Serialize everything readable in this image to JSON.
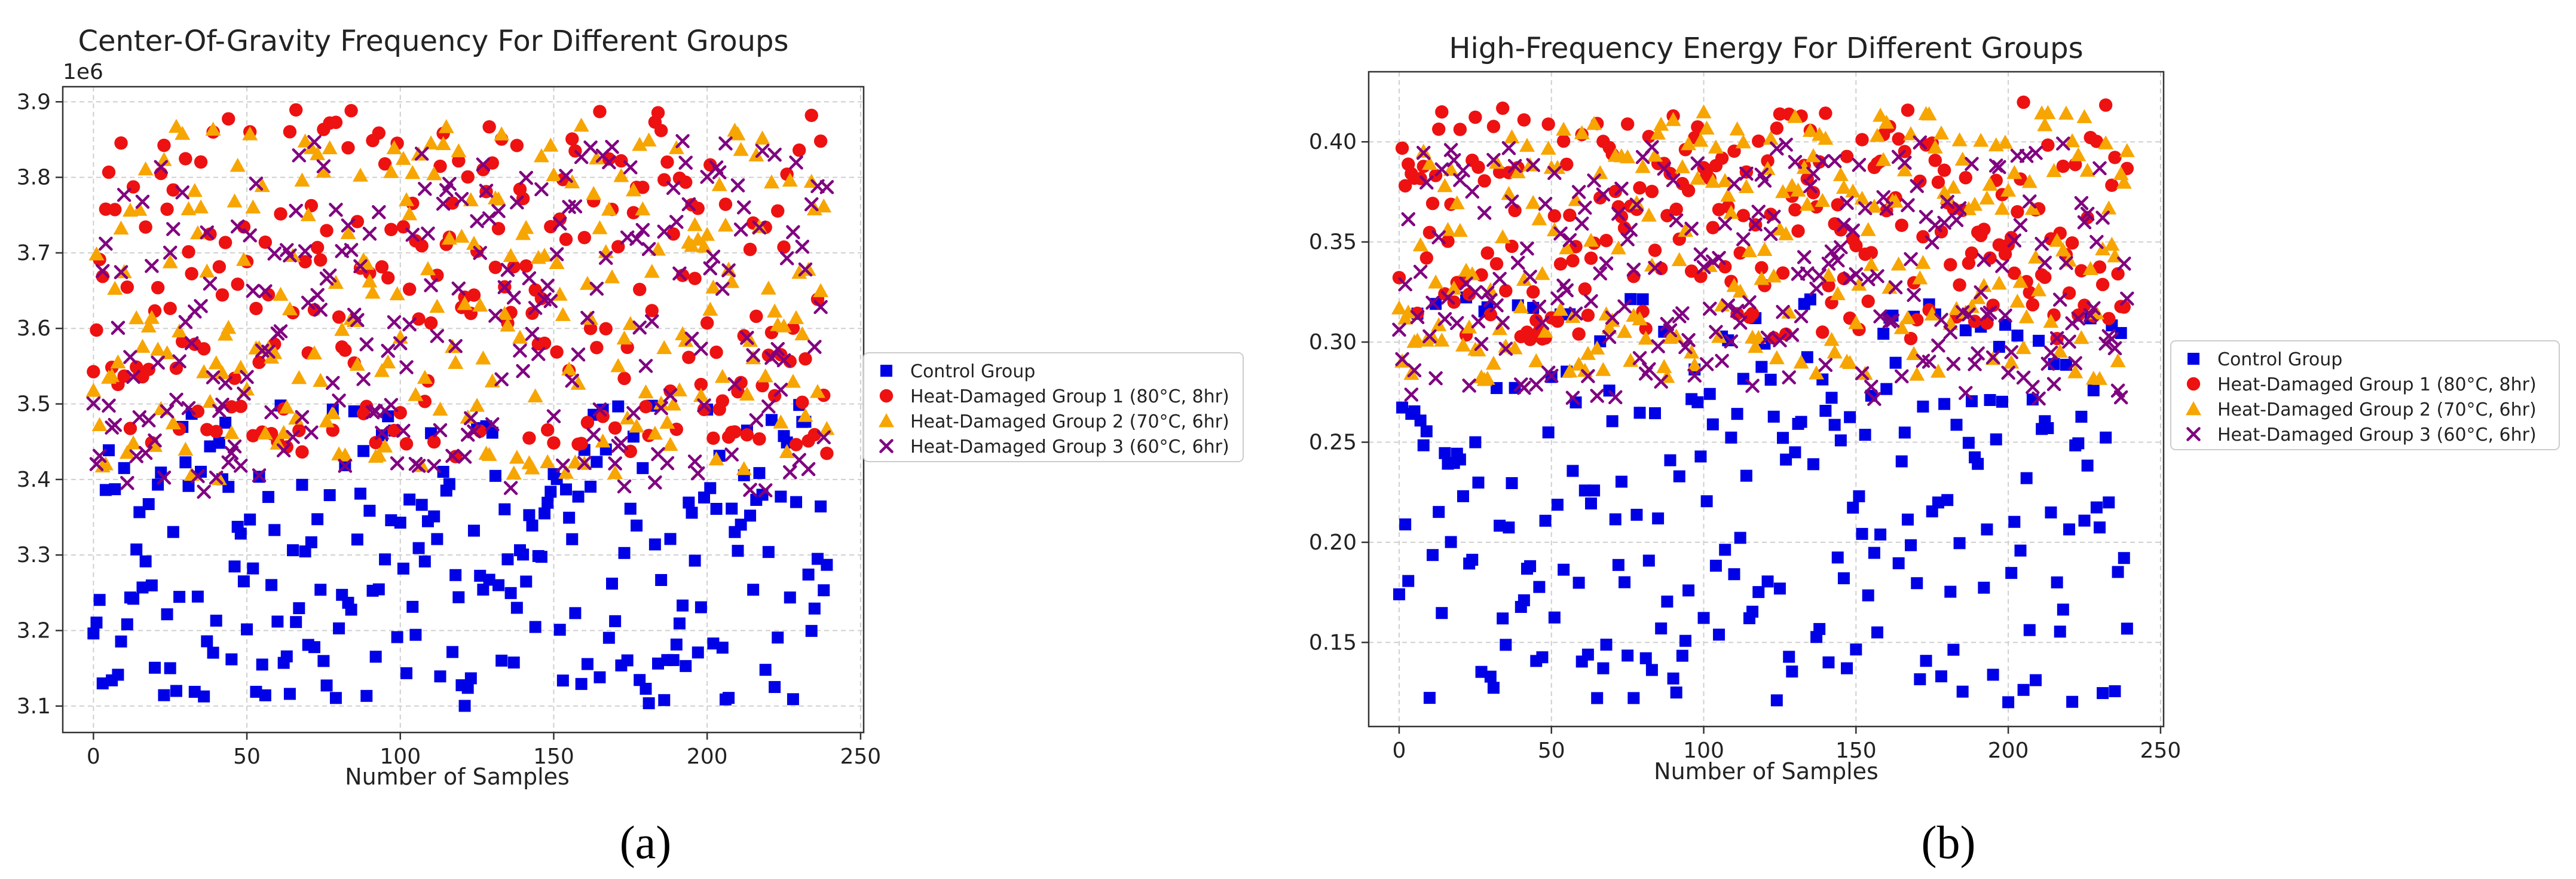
{
  "chart_data": [
    {
      "type": "scatter",
      "title": "Center-Of-Gravity Frequency For Different Groups",
      "xlabel": "Number of Samples",
      "ylabel": "",
      "offset_label": "1e6",
      "xlim": [
        -10,
        251
      ],
      "ylim": [
        3.065,
        3.92
      ],
      "xticks": [
        0,
        50,
        100,
        150,
        200,
        250
      ],
      "xtick_labels": [
        "0",
        "50",
        "100",
        "150",
        "200",
        "250"
      ],
      "yticks": [
        3.1,
        3.2,
        3.3,
        3.4,
        3.5,
        3.6,
        3.7,
        3.8,
        3.9
      ],
      "ytick_labels": [
        "3.1",
        "3.2",
        "3.3",
        "3.4",
        "3.5",
        "3.6",
        "3.7",
        "3.8",
        "3.9"
      ],
      "n_points": 240,
      "grid": true,
      "legend_position": "right-outside",
      "caption": "(a)",
      "series": [
        {
          "name": "Control Group",
          "marker": "square",
          "color": "#0000e6",
          "range": [
            3.1,
            3.5
          ],
          "seed": 11
        },
        {
          "name": "Heat-Damaged Group 1 (80°C, 8hr)",
          "marker": "circle",
          "color": "#ee1111",
          "range": [
            3.43,
            3.89
          ],
          "seed": 23
        },
        {
          "name": "Heat-Damaged Group 2 (70°C, 6hr)",
          "marker": "triangle",
          "color": "#f7a500",
          "range": [
            3.4,
            3.87
          ],
          "seed": 37
        },
        {
          "name": "Heat-Damaged Group 3 (60°C, 6hr)",
          "marker": "x",
          "color": "#800080",
          "range": [
            3.38,
            3.85
          ],
          "seed": 53
        }
      ]
    },
    {
      "type": "scatter",
      "title": "High-Frequency Energy For Different Groups",
      "xlabel": "Number of Samples",
      "ylabel": "",
      "offset_label": "",
      "xlim": [
        -10,
        251
      ],
      "ylim": [
        0.108,
        0.435
      ],
      "xticks": [
        0,
        50,
        100,
        150,
        200,
        250
      ],
      "xtick_labels": [
        "0",
        "50",
        "100",
        "150",
        "200",
        "250"
      ],
      "yticks": [
        0.15,
        0.2,
        0.25,
        0.3,
        0.35,
        0.4
      ],
      "ytick_labels": [
        "0.15",
        "0.20",
        "0.25",
        "0.30",
        "0.35",
        "0.40"
      ],
      "n_points": 240,
      "grid": true,
      "legend_position": "right-outside",
      "caption": "(b)",
      "series": [
        {
          "name": "Control Group",
          "marker": "square",
          "color": "#0000e6",
          "range": [
            0.12,
            0.325
          ],
          "seed": 71
        },
        {
          "name": "Heat-Damaged Group 1 (80°C, 8hr)",
          "marker": "circle",
          "color": "#ee1111",
          "range": [
            0.3,
            0.42
          ],
          "seed": 83
        },
        {
          "name": "Heat-Damaged Group 2 (70°C, 6hr)",
          "marker": "triangle",
          "color": "#f7a500",
          "range": [
            0.28,
            0.415
          ],
          "seed": 97
        },
        {
          "name": "Heat-Damaged Group 3 (60°C, 6hr)",
          "marker": "x",
          "color": "#800080",
          "range": [
            0.27,
            0.4
          ],
          "seed": 109
        }
      ]
    }
  ]
}
